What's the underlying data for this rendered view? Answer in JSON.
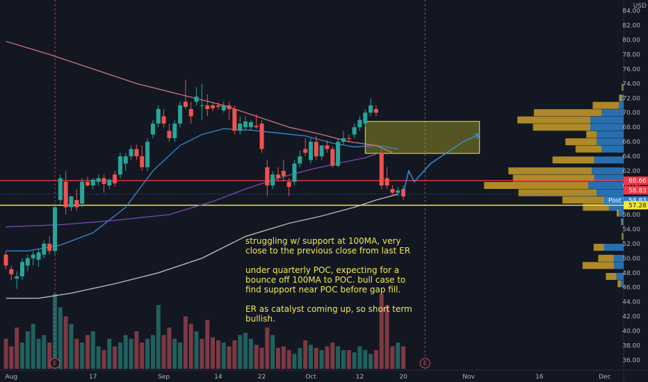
{
  "chart_data": {
    "type": "candlestick",
    "currency_label": "USD",
    "y_ticks": [
      84,
      82,
      80,
      78,
      76,
      74,
      72,
      70,
      68,
      66,
      64,
      62,
      60,
      58,
      56,
      54,
      52,
      50,
      48,
      46,
      44,
      42,
      40,
      38,
      36
    ],
    "ylim": [
      35,
      85
    ],
    "x_ticks": [
      {
        "label": "Aug",
        "idx": 1
      },
      {
        "label": "17",
        "idx": 16
      },
      {
        "label": "Sep",
        "idx": 29
      },
      {
        "label": "14",
        "idx": 39
      },
      {
        "label": "22",
        "idx": 47
      },
      {
        "label": "Oct",
        "idx": 56
      },
      {
        "label": "12",
        "idx": 65
      },
      {
        "label": "20",
        "idx": 73
      },
      {
        "label": "Nov",
        "idx": 85
      },
      {
        "label": "16",
        "idx": 98
      },
      {
        "label": "Dec",
        "idx": 110
      }
    ],
    "earnings_markers": [
      {
        "label": "E",
        "idx": 9
      },
      {
        "label": "E",
        "idx": 77
      }
    ],
    "candles": [
      {
        "o": 50.5,
        "h": 51.0,
        "l": 48.5,
        "c": 49.0
      },
      {
        "o": 48.5,
        "h": 49.0,
        "l": 47.0,
        "c": 47.8
      },
      {
        "o": 47.2,
        "h": 48.2,
        "l": 45.8,
        "c": 47.5
      },
      {
        "o": 47.5,
        "h": 50.0,
        "l": 47.0,
        "c": 49.5
      },
      {
        "o": 49.0,
        "h": 50.5,
        "l": 48.2,
        "c": 50.0
      },
      {
        "o": 50.0,
        "h": 51.0,
        "l": 49.0,
        "c": 50.5
      },
      {
        "o": 49.8,
        "h": 51.2,
        "l": 48.8,
        "c": 50.8
      },
      {
        "o": 50.5,
        "h": 52.5,
        "l": 50.0,
        "c": 52.0
      },
      {
        "o": 52.0,
        "h": 53.0,
        "l": 50.5,
        "c": 51.0
      },
      {
        "o": 51.0,
        "h": 57.5,
        "l": 50.5,
        "c": 57.0
      },
      {
        "o": 58.0,
        "h": 61.5,
        "l": 57.5,
        "c": 61.0
      },
      {
        "o": 60.5,
        "h": 62.0,
        "l": 56.0,
        "c": 57.0
      },
      {
        "o": 57.0,
        "h": 58.5,
        "l": 56.5,
        "c": 58.5
      },
      {
        "o": 58.0,
        "h": 59.5,
        "l": 56.5,
        "c": 57.0
      },
      {
        "o": 57.5,
        "h": 61.0,
        "l": 57.0,
        "c": 60.5
      },
      {
        "o": 60.5,
        "h": 61.2,
        "l": 59.8,
        "c": 60.0
      },
      {
        "o": 60.0,
        "h": 61.0,
        "l": 59.5,
        "c": 60.8
      },
      {
        "o": 60.5,
        "h": 61.5,
        "l": 60.0,
        "c": 61.0
      },
      {
        "o": 61.0,
        "h": 61.5,
        "l": 59.0,
        "c": 60.2
      },
      {
        "o": 60.0,
        "h": 61.0,
        "l": 59.5,
        "c": 60.8
      },
      {
        "o": 61.5,
        "h": 62.0,
        "l": 59.8,
        "c": 60.3
      },
      {
        "o": 61.5,
        "h": 64.5,
        "l": 61.0,
        "c": 64.0
      },
      {
        "o": 63.0,
        "h": 64.5,
        "l": 62.0,
        "c": 64.0
      },
      {
        "o": 64.0,
        "h": 65.5,
        "l": 63.5,
        "c": 65.0
      },
      {
        "o": 65.0,
        "h": 65.6,
        "l": 63.5,
        "c": 64.0
      },
      {
        "o": 64.0,
        "h": 65.5,
        "l": 62.0,
        "c": 62.5
      },
      {
        "o": 62.5,
        "h": 66.5,
        "l": 62.0,
        "c": 66.0
      },
      {
        "o": 67.0,
        "h": 69.0,
        "l": 66.5,
        "c": 68.5
      },
      {
        "o": 68.5,
        "h": 71.0,
        "l": 68.0,
        "c": 70.5
      },
      {
        "o": 69.5,
        "h": 70.5,
        "l": 68.0,
        "c": 68.5
      },
      {
        "o": 67.5,
        "h": 68.5,
        "l": 66.0,
        "c": 66.5
      },
      {
        "o": 66.5,
        "h": 69.0,
        "l": 66.0,
        "c": 68.5
      },
      {
        "o": 68.5,
        "h": 71.5,
        "l": 68.0,
        "c": 71.0
      },
      {
        "o": 71.5,
        "h": 74.5,
        "l": 70.5,
        "c": 70.8
      },
      {
        "o": 70.5,
        "h": 71.5,
        "l": 68.5,
        "c": 69.5
      },
      {
        "o": 71.5,
        "h": 73.5,
        "l": 71.0,
        "c": 72.2
      },
      {
        "o": 71.0,
        "h": 74.0,
        "l": 69.0,
        "c": 71.0
      },
      {
        "o": 71.0,
        "h": 72.5,
        "l": 69.5,
        "c": 70.5
      },
      {
        "o": 71.0,
        "h": 71.3,
        "l": 70.2,
        "c": 70.6
      },
      {
        "o": 71.0,
        "h": 71.4,
        "l": 70.4,
        "c": 70.8
      },
      {
        "o": 70.3,
        "h": 71.5,
        "l": 70.0,
        "c": 71.0
      },
      {
        "o": 71.0,
        "h": 71.5,
        "l": 69.0,
        "c": 70.5
      },
      {
        "o": 70.5,
        "h": 71.0,
        "l": 67.0,
        "c": 67.5
      },
      {
        "o": 67.5,
        "h": 69.5,
        "l": 67.0,
        "c": 68.5
      },
      {
        "o": 68.0,
        "h": 69.5,
        "l": 67.5,
        "c": 68.8
      },
      {
        "o": 68.0,
        "h": 69.0,
        "l": 67.5,
        "c": 68.7
      },
      {
        "o": 68.2,
        "h": 69.8,
        "l": 67.8,
        "c": 68.0
      },
      {
        "o": 68.5,
        "h": 69.0,
        "l": 64.5,
        "c": 65.0
      },
      {
        "o": 62.5,
        "h": 63.5,
        "l": 58.5,
        "c": 60.0
      },
      {
        "o": 60.0,
        "h": 62.0,
        "l": 59.5,
        "c": 61.5
      },
      {
        "o": 61.5,
        "h": 62.5,
        "l": 60.5,
        "c": 61.0
      },
      {
        "o": 62.0,
        "h": 63.5,
        "l": 60.5,
        "c": 61.3
      },
      {
        "o": 60.5,
        "h": 61.0,
        "l": 58.5,
        "c": 59.8
      },
      {
        "o": 60.5,
        "h": 63.5,
        "l": 60.0,
        "c": 63.0
      },
      {
        "o": 63.0,
        "h": 64.8,
        "l": 62.5,
        "c": 64.0
      },
      {
        "o": 65.0,
        "h": 66.5,
        "l": 64.0,
        "c": 64.5
      },
      {
        "o": 63.5,
        "h": 66.5,
        "l": 63.0,
        "c": 66.0
      },
      {
        "o": 66.0,
        "h": 66.8,
        "l": 63.5,
        "c": 64.0
      },
      {
        "o": 64.0,
        "h": 65.5,
        "l": 63.5,
        "c": 65.5
      },
      {
        "o": 65.5,
        "h": 66.2,
        "l": 64.5,
        "c": 65.0
      },
      {
        "o": 65.0,
        "h": 65.4,
        "l": 62.5,
        "c": 62.7
      },
      {
        "o": 62.7,
        "h": 66.5,
        "l": 62.5,
        "c": 66.0
      },
      {
        "o": 66.0,
        "h": 67.5,
        "l": 65.5,
        "c": 66.5
      },
      {
        "o": 66.5,
        "h": 67.0,
        "l": 66.0,
        "c": 66.4
      },
      {
        "o": 67.0,
        "h": 68.5,
        "l": 66.5,
        "c": 68.0
      },
      {
        "o": 68.0,
        "h": 69.5,
        "l": 67.5,
        "c": 69.0
      },
      {
        "o": 68.5,
        "h": 70.5,
        "l": 68.0,
        "c": 70.0
      },
      {
        "o": 70.0,
        "h": 72.0,
        "l": 69.5,
        "c": 71.0
      },
      {
        "o": 70.5,
        "h": 71.0,
        "l": 69.5,
        "c": 70.0
      },
      {
        "o": 64.5,
        "h": 65.0,
        "l": 59.5,
        "c": 60.0
      },
      {
        "o": 61.0,
        "h": 62.5,
        "l": 59.5,
        "c": 60.0
      },
      {
        "o": 59.5,
        "h": 60.0,
        "l": 58.5,
        "c": 59.0
      },
      {
        "o": 59.0,
        "h": 59.8,
        "l": 58.5,
        "c": 59.3
      },
      {
        "o": 59.5,
        "h": 60.0,
        "l": 58.0,
        "c": 58.5
      }
    ],
    "volume": [
      40,
      30,
      55,
      35,
      50,
      60,
      40,
      45,
      35,
      100,
      82,
      70,
      60,
      40,
      35,
      45,
      50,
      30,
      25,
      40,
      30,
      35,
      45,
      40,
      50,
      35,
      40,
      45,
      85,
      45,
      55,
      40,
      35,
      70,
      60,
      50,
      40,
      65,
      42,
      38,
      35,
      30,
      38,
      45,
      48,
      40,
      32,
      28,
      55,
      45,
      28,
      30,
      25,
      20,
      28,
      38,
      32,
      28,
      25,
      30,
      35,
      30,
      25,
      25,
      22,
      30,
      25,
      20,
      25,
      100,
      85,
      30,
      35,
      30
    ],
    "volume_colors": [
      "#d7555c",
      "#d7555c",
      "#d7555c",
      "#2b9e8f",
      "#2b9e8f",
      "#2b9e8f",
      "#2b9e8f",
      "#2b9e8f",
      "#d7555c",
      "#2b9e8f",
      "#2b9e8f",
      "#d7555c",
      "#2b9e8f",
      "#d7555c",
      "#2b9e8f",
      "#d7555c",
      "#2b9e8f",
      "#2b9e8f",
      "#d7555c",
      "#2b9e8f",
      "#d7555c",
      "#2b9e8f",
      "#2b9e8f",
      "#2b9e8f",
      "#d7555c",
      "#d7555c",
      "#2b9e8f",
      "#2b9e8f",
      "#2b9e8f",
      "#d7555c",
      "#d7555c",
      "#2b9e8f",
      "#2b9e8f",
      "#d7555c",
      "#d7555c",
      "#2b9e8f",
      "#d7555c",
      "#d7555c",
      "#d7555c",
      "#d7555c",
      "#2b9e8f",
      "#d7555c",
      "#d7555c",
      "#2b9e8f",
      "#2b9e8f",
      "#2b9e8f",
      "#d7555c",
      "#d7555c",
      "#d7555c",
      "#2b9e8f",
      "#d7555c",
      "#d7555c",
      "#d7555c",
      "#2b9e8f",
      "#2b9e8f",
      "#d7555c",
      "#2b9e8f",
      "#d7555c",
      "#2b9e8f",
      "#d7555c",
      "#d7555c",
      "#2b9e8f",
      "#2b9e8f",
      "#d7555c",
      "#2b9e8f",
      "#2b9e8f",
      "#2b9e8f",
      "#2b9e8f",
      "#d7555c",
      "#d7555c",
      "#d7555c",
      "#d7555c",
      "#2b9e8f",
      "#d7555c"
    ],
    "ma_lines": [
      {
        "color": "#3b8fd9",
        "points": [
          [
            0,
            51.0
          ],
          [
            4,
            51.0
          ],
          [
            10,
            51.8
          ],
          [
            16,
            53.5
          ],
          [
            22,
            57.0
          ],
          [
            27,
            62.0
          ],
          [
            32,
            65.5
          ],
          [
            36,
            67.0
          ],
          [
            40,
            67.8
          ],
          [
            45,
            67.6
          ],
          [
            50,
            67.2
          ],
          [
            55,
            66.8
          ],
          [
            60,
            65.8
          ],
          [
            64,
            65.3
          ],
          [
            68,
            65.5
          ],
          [
            72,
            65.0
          ]
        ]
      },
      {
        "color": "#7b50b8",
        "points": [
          [
            0,
            54.3
          ],
          [
            10,
            54.6
          ],
          [
            20,
            55.2
          ],
          [
            30,
            56.0
          ],
          [
            38,
            57.8
          ],
          [
            44,
            59.5
          ],
          [
            50,
            61.0
          ],
          [
            56,
            62.2
          ],
          [
            62,
            63.2
          ],
          [
            66,
            63.8
          ],
          [
            68,
            64.3
          ]
        ]
      },
      {
        "color": "#cccccc",
        "points": [
          [
            0,
            44.5
          ],
          [
            6,
            44.5
          ],
          [
            12,
            45.2
          ],
          [
            20,
            46.5
          ],
          [
            28,
            48.0
          ],
          [
            36,
            50.0
          ],
          [
            44,
            53.0
          ],
          [
            52,
            54.8
          ],
          [
            58,
            55.8
          ],
          [
            64,
            57.0
          ],
          [
            68,
            58.0
          ],
          [
            72,
            58.8
          ]
        ]
      },
      {
        "color": "#d8787d",
        "points": [
          [
            0,
            79.8
          ],
          [
            8,
            78.0
          ],
          [
            16,
            76.0
          ],
          [
            24,
            74.0
          ],
          [
            32,
            72.5
          ],
          [
            40,
            71.0
          ],
          [
            46,
            69.5
          ],
          [
            52,
            68.0
          ],
          [
            58,
            67.0
          ],
          [
            63,
            66.0
          ],
          [
            68,
            65.5
          ],
          [
            71,
            64.5
          ]
        ]
      }
    ],
    "support_lines": [
      {
        "value": 60.66,
        "color": "#f23645",
        "label": "60.66"
      },
      {
        "value": 57.28,
        "color": "#f3e837",
        "label": "57.28"
      }
    ],
    "last_price": {
      "value": 58.83,
      "label": "58.83",
      "post_tag": "Post",
      "post_value": "58.83"
    },
    "box": {
      "x0": 66,
      "x1": 87,
      "y0": 64.4,
      "y1": 68.8
    },
    "projection_path": [
      [
        73,
        59.0
      ],
      [
        74,
        62.0
      ],
      [
        75,
        60.5
      ],
      [
        78,
        63.0
      ],
      [
        84,
        66.0
      ],
      [
        87,
        67.0
      ]
    ],
    "volume_profile": [
      {
        "price": 73.5,
        "gold": 1,
        "blue": 2
      },
      {
        "price": 72.0,
        "gold": 3,
        "blue": 3
      },
      {
        "price": 71.0,
        "gold": 25,
        "blue": 10
      },
      {
        "price": 70.0,
        "gold": 65,
        "blue": 45
      },
      {
        "price": 69.0,
        "gold": 70,
        "blue": 68
      },
      {
        "price": 68.0,
        "gold": 55,
        "blue": 68
      },
      {
        "price": 67.0,
        "gold": 10,
        "blue": 55
      },
      {
        "price": 66.0,
        "gold": 30,
        "blue": 55
      },
      {
        "price": 65.0,
        "gold": 25,
        "blue": 45
      },
      {
        "price": 63.5,
        "gold": 40,
        "blue": 60
      },
      {
        "price": 62.0,
        "gold": 80,
        "blue": 65
      },
      {
        "price": 61.0,
        "gold": 78,
        "blue": 60
      },
      {
        "price": 60.0,
        "gold": 100,
        "blue": 72
      },
      {
        "price": 59.0,
        "gold": 75,
        "blue": 55
      },
      {
        "price": 58.0,
        "gold": 40,
        "blue": 40
      },
      {
        "price": 57.0,
        "gold": 25,
        "blue": 30
      },
      {
        "price": 56.2,
        "gold": 2,
        "blue": 10
      },
      {
        "price": 55.0,
        "gold": 1,
        "blue": 3
      },
      {
        "price": 53.0,
        "gold": 1,
        "blue": 2
      },
      {
        "price": 51.5,
        "gold": 10,
        "blue": 40
      },
      {
        "price": 50.0,
        "gold": 15,
        "blue": 20
      },
      {
        "price": 49.0,
        "gold": 30,
        "blue": 20
      },
      {
        "price": 47.5,
        "gold": 10,
        "blue": 15
      },
      {
        "price": 46.5,
        "gold": 3,
        "blue": 6
      }
    ],
    "annotation_lines": [
      "struggling w/ support at 100MA, very",
      "close to the previous close from last ER",
      "",
      "under quarterly POC, expecting for a",
      "bounce off 100MA to POC. bull case to",
      "find support near POC before gap fill.",
      "",
      "ER as catalyst coming up, so short term",
      "bullish."
    ]
  }
}
